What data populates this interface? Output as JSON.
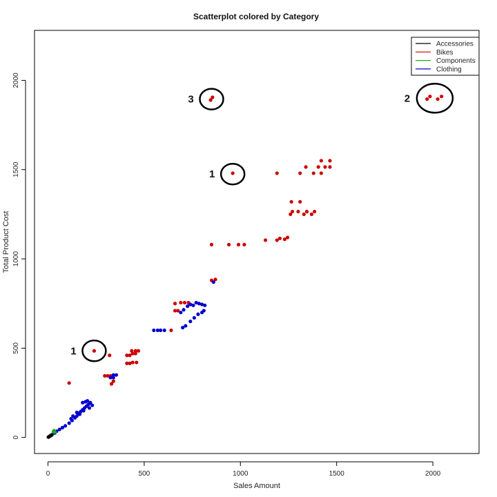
{
  "chart_data": {
    "type": "scatter",
    "title": "Scatterplot colored by Category",
    "xlabel": "Sales Amount",
    "ylabel": "Total Product Cost",
    "xlim": [
      -70,
      2240
    ],
    "ylim": [
      -90,
      2280
    ],
    "x_ticks": [
      0,
      500,
      1000,
      1500,
      2000
    ],
    "y_ticks": [
      0,
      500,
      1000,
      1500,
      2000
    ],
    "grid": false,
    "legend_position": "top-right",
    "legend": [
      {
        "name": "Accessories",
        "color": "#000000"
      },
      {
        "name": "Bikes",
        "color": "#cc0000"
      },
      {
        "name": "Components",
        "color": "#22aa22"
      },
      {
        "name": "Clothing",
        "color": "#0000cc"
      }
    ],
    "series": [
      {
        "name": "Bikes",
        "color": "#cc0000",
        "points": [
          [
            110,
            305
          ],
          [
            240,
            485
          ],
          [
            320,
            460
          ],
          [
            330,
            300
          ],
          [
            340,
            315
          ],
          [
            295,
            345
          ],
          [
            310,
            345
          ],
          [
            325,
            345
          ],
          [
            410,
            415
          ],
          [
            425,
            415
          ],
          [
            440,
            420
          ],
          [
            460,
            420
          ],
          [
            410,
            460
          ],
          [
            425,
            460
          ],
          [
            440,
            470
          ],
          [
            455,
            470
          ],
          [
            435,
            485
          ],
          [
            455,
            485
          ],
          [
            470,
            485
          ],
          [
            640,
            600
          ],
          [
            660,
            710
          ],
          [
            675,
            710
          ],
          [
            660,
            750
          ],
          [
            690,
            755
          ],
          [
            710,
            755
          ],
          [
            730,
            755
          ],
          [
            850,
            880
          ],
          [
            870,
            885
          ],
          [
            850,
            1080
          ],
          [
            940,
            1080
          ],
          [
            990,
            1080
          ],
          [
            1020,
            1080
          ],
          [
            960,
            1480
          ],
          [
            1130,
            1105
          ],
          [
            1190,
            1105
          ],
          [
            1205,
            1115
          ],
          [
            1230,
            1110
          ],
          [
            1245,
            1120
          ],
          [
            1260,
            1250
          ],
          [
            1270,
            1265
          ],
          [
            1300,
            1265
          ],
          [
            1330,
            1250
          ],
          [
            1345,
            1265
          ],
          [
            1370,
            1250
          ],
          [
            1385,
            1265
          ],
          [
            1265,
            1320
          ],
          [
            1310,
            1320
          ],
          [
            1190,
            1480
          ],
          [
            1310,
            1480
          ],
          [
            1340,
            1515
          ],
          [
            1380,
            1480
          ],
          [
            1405,
            1515
          ],
          [
            1420,
            1480
          ],
          [
            1420,
            1550
          ],
          [
            1440,
            1515
          ],
          [
            1465,
            1515
          ],
          [
            1465,
            1550
          ],
          [
            845,
            1890
          ],
          [
            855,
            1905
          ],
          [
            1970,
            1895
          ],
          [
            1985,
            1910
          ],
          [
            2025,
            1895
          ],
          [
            2045,
            1910
          ]
        ]
      },
      {
        "name": "Clothing",
        "color": "#0000cc",
        "points": [
          [
            20,
            15
          ],
          [
            35,
            25
          ],
          [
            45,
            35
          ],
          [
            60,
            45
          ],
          [
            75,
            55
          ],
          [
            90,
            65
          ],
          [
            110,
            80
          ],
          [
            125,
            95
          ],
          [
            140,
            110
          ],
          [
            150,
            120
          ],
          [
            160,
            135
          ],
          [
            170,
            145
          ],
          [
            180,
            155
          ],
          [
            190,
            165
          ],
          [
            200,
            175
          ],
          [
            210,
            185
          ],
          [
            220,
            195
          ],
          [
            230,
            180
          ],
          [
            180,
            195
          ],
          [
            195,
            200
          ],
          [
            205,
            205
          ],
          [
            150,
            140
          ],
          [
            130,
            120
          ],
          [
            120,
            105
          ],
          [
            165,
            130
          ],
          [
            185,
            150
          ],
          [
            215,
            165
          ],
          [
            340,
            350
          ],
          [
            355,
            350
          ],
          [
            325,
            335
          ],
          [
            340,
            335
          ],
          [
            550,
            600
          ],
          [
            570,
            600
          ],
          [
            585,
            600
          ],
          [
            605,
            600
          ],
          [
            700,
            615
          ],
          [
            715,
            625
          ],
          [
            740,
            650
          ],
          [
            760,
            670
          ],
          [
            780,
            690
          ],
          [
            800,
            700
          ],
          [
            810,
            710
          ],
          [
            690,
            700
          ],
          [
            705,
            715
          ],
          [
            725,
            735
          ],
          [
            740,
            745
          ],
          [
            755,
            740
          ],
          [
            770,
            755
          ],
          [
            785,
            750
          ],
          [
            800,
            745
          ],
          [
            815,
            740
          ],
          [
            860,
            870
          ]
        ]
      },
      {
        "name": "Components",
        "color": "#22aa22",
        "points": [
          [
            28,
            32
          ],
          [
            32,
            38
          ],
          [
            36,
            30
          ]
        ]
      },
      {
        "name": "Accessories",
        "color": "#000000",
        "points": [
          [
            2,
            2
          ],
          [
            5,
            4
          ],
          [
            8,
            6
          ],
          [
            12,
            9
          ],
          [
            16,
            12
          ],
          [
            20,
            14
          ]
        ]
      }
    ],
    "annotations": [
      {
        "label": "1",
        "cx": 240,
        "cy": 485
      },
      {
        "label": "1",
        "cx": 960,
        "cy": 1475
      },
      {
        "label": "3",
        "cx": 850,
        "cy": 1895
      },
      {
        "label": "2",
        "cx": 2010,
        "cy": 1900
      }
    ]
  }
}
